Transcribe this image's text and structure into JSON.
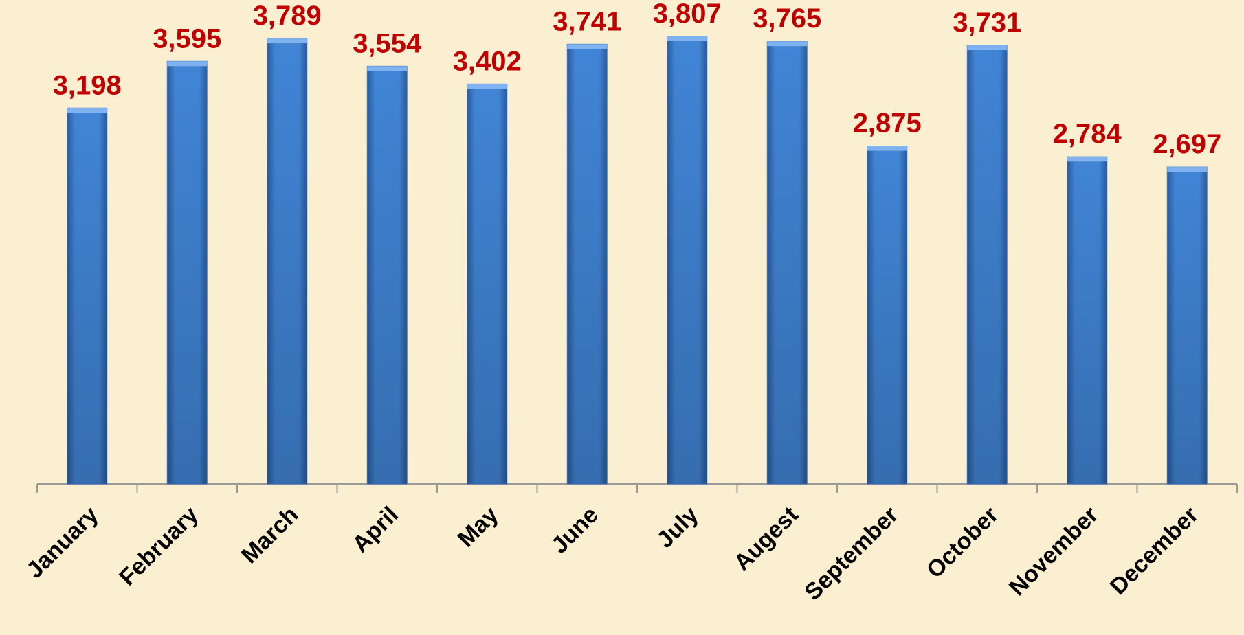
{
  "chart_data": {
    "type": "bar",
    "categories": [
      "January",
      "February",
      "March",
      "April",
      "May",
      "June",
      "July",
      "Augest",
      "September",
      "October",
      "November",
      "December"
    ],
    "values": [
      3198,
      3595,
      3789,
      3554,
      3402,
      3741,
      3807,
      3765,
      2875,
      3731,
      2784,
      2697
    ],
    "value_labels": [
      "3,198",
      "3,595",
      "3,789",
      "3,554",
      "3,402",
      "3,741",
      "3,807",
      "3,765",
      "2,875",
      "3,731",
      "2,784",
      "2,697"
    ],
    "color": "#3d7ccc"
  }
}
